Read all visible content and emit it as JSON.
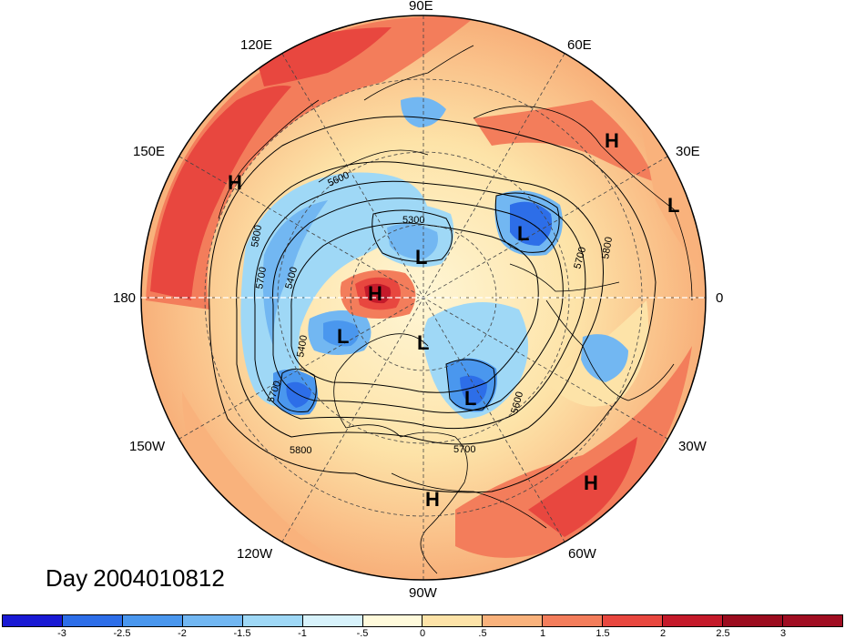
{
  "title_prefix": "Day",
  "title_value": "2004010812",
  "longitude_labels": {
    "top": "90E",
    "bottom": "90W",
    "left": "180",
    "right": "0",
    "upper_left": "120E",
    "upper_right": "60E",
    "mid_left_upper": "150E",
    "mid_right_upper": "30E",
    "mid_left_lower": "150W",
    "mid_right_lower": "30W",
    "lower_left": "120W",
    "lower_right": "60W"
  },
  "pressure_centers": [
    {
      "label": "H",
      "id": "high-pacific-west"
    },
    {
      "label": "H",
      "id": "high-siberia"
    },
    {
      "label": "L",
      "id": "low-europe"
    },
    {
      "label": "L",
      "id": "low-scandinavia"
    },
    {
      "label": "L",
      "id": "low-arctic"
    },
    {
      "label": "H",
      "id": "high-east-siberian-sea"
    },
    {
      "label": "L",
      "id": "low-alaska"
    },
    {
      "label": "L",
      "id": "low-canada-arctic"
    },
    {
      "label": "L",
      "id": "low-hudson"
    },
    {
      "label": "H",
      "id": "high-atlantic"
    },
    {
      "label": "H",
      "id": "high-mexico"
    }
  ],
  "contour_labels": [
    "5300",
    "5600",
    "5800",
    "5700",
    "5800",
    "5400",
    "5700",
    "5400",
    "5700",
    "5800",
    "5600",
    "5700"
  ],
  "colorbar": {
    "ticks": [
      "-3",
      "-2.5",
      "-2",
      "-1.5",
      "-1",
      "-.5",
      "0",
      ".5",
      "1",
      "1.5",
      "2",
      "2.5",
      "3"
    ],
    "colors": [
      "#1a1ad4",
      "#2d6ee8",
      "#4a97ee",
      "#72b7f2",
      "#9fd8f6",
      "#d7f2fb",
      "#fffadb",
      "#fde3a8",
      "#f9b27c",
      "#f37d5b",
      "#e8473f",
      "#c41a2a",
      "#9b0c1e",
      "#a00d22"
    ]
  }
}
